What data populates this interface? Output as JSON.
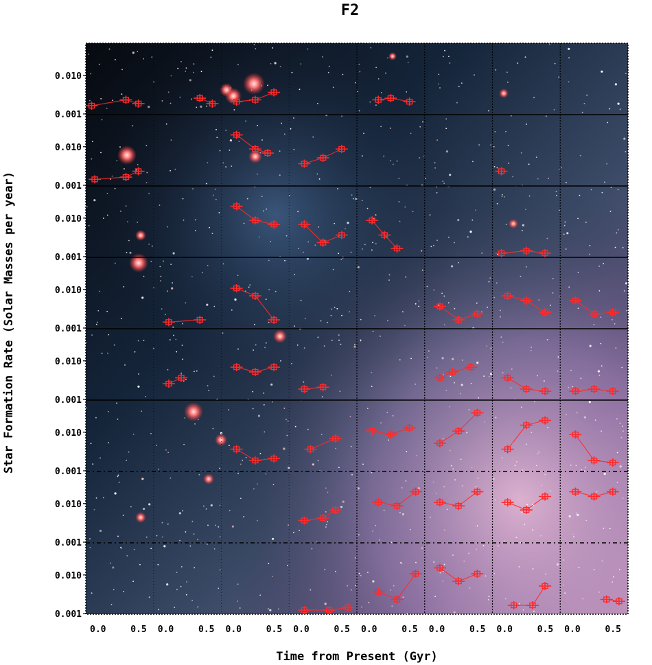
{
  "figure": {
    "title": "F2",
    "xlabel": "Time from Present (Gyr)",
    "ylabel": "Star Formation Rate (Solar Masses per year)"
  },
  "axes": {
    "y_tick_labels": [
      "0.010",
      "0.001"
    ],
    "x_tick_labels": [
      "0.0",
      "0.5",
      "0.0",
      "0.5",
      "0.0",
      "0.5",
      "0.0",
      "0.5",
      "0.0",
      "0.5",
      "0.0",
      "0.5",
      "0.0",
      "0.5",
      "0.0",
      "0.5"
    ]
  },
  "colors": {
    "frame": "#000000",
    "data_mark": "#ff2a2a",
    "text": "#000000"
  },
  "chart_data": {
    "type": "scatter",
    "title": "F2",
    "xlabel": "Time from Present (Gyr)",
    "ylabel": "Star Formation Rate (Solar Masses per year)",
    "grid": {
      "rows": 8,
      "cols": 8
    },
    "x_range_per_panel": [
      0,
      1
    ],
    "y_range_per_panel": [
      0.001,
      0.01
    ],
    "yscale": "log",
    "points_note": "per-panel star formation history estimates with error bars",
    "panels": [
      {
        "row": 0,
        "col": 0,
        "x": [
          0.05,
          0.6,
          0.8
        ],
        "y": [
          0.0012,
          0.0015,
          0.0013
        ]
      },
      {
        "row": 0,
        "col": 1,
        "x": [
          0.7,
          0.9
        ],
        "y": [
          0.0016,
          0.0013
        ]
      },
      {
        "row": 0,
        "col": 2,
        "x": [
          0.2,
          0.5,
          0.8
        ],
        "y": [
          0.0014,
          0.0015,
          0.002
        ]
      },
      {
        "row": 0,
        "col": 4,
        "x": [
          0.3,
          0.5,
          0.8
        ],
        "y": [
          0.0015,
          0.0016,
          0.0014
        ]
      },
      {
        "row": 1,
        "col": 0,
        "x": [
          0.1,
          0.6,
          0.8
        ],
        "y": [
          0.0011,
          0.0012,
          0.0015
        ]
      },
      {
        "row": 1,
        "col": 2,
        "x": [
          0.2,
          0.5,
          0.7
        ],
        "y": [
          0.006,
          0.0035,
          0.003
        ]
      },
      {
        "row": 1,
        "col": 3,
        "x": [
          0.2,
          0.5,
          0.8
        ],
        "y": [
          0.002,
          0.0025,
          0.0035
        ]
      },
      {
        "row": 1,
        "col": 6,
        "x": [
          0.1
        ],
        "y": [
          0.0015
        ]
      },
      {
        "row": 2,
        "col": 2,
        "x": [
          0.2,
          0.5,
          0.8
        ],
        "y": [
          0.006,
          0.0035,
          0.003
        ]
      },
      {
        "row": 2,
        "col": 3,
        "x": [
          0.2,
          0.5,
          0.8
        ],
        "y": [
          0.003,
          0.0015,
          0.002
        ]
      },
      {
        "row": 2,
        "col": 4,
        "x": [
          0.2,
          0.4,
          0.6
        ],
        "y": [
          0.0035,
          0.002,
          0.0012
        ]
      },
      {
        "row": 2,
        "col": 6,
        "x": [
          0.1,
          0.5,
          0.8
        ],
        "y": [
          0.001,
          0.0011,
          0.001
        ]
      },
      {
        "row": 3,
        "col": 1,
        "x": [
          0.2,
          0.7
        ],
        "y": [
          0.0011,
          0.0012
        ]
      },
      {
        "row": 3,
        "col": 2,
        "x": [
          0.2,
          0.5,
          0.8
        ],
        "y": [
          0.004,
          0.003,
          0.0012
        ]
      },
      {
        "row": 3,
        "col": 5,
        "x": [
          0.2,
          0.5,
          0.8
        ],
        "y": [
          0.002,
          0.0012,
          0.0015
        ]
      },
      {
        "row": 3,
        "col": 6,
        "x": [
          0.2,
          0.5,
          0.8
        ],
        "y": [
          0.003,
          0.0025,
          0.0016
        ]
      },
      {
        "row": 3,
        "col": 7,
        "x": [
          0.2,
          0.5,
          0.8
        ],
        "y": [
          0.0025,
          0.0015,
          0.0016
        ]
      },
      {
        "row": 4,
        "col": 1,
        "x": [
          0.2,
          0.4
        ],
        "y": [
          0.0016,
          0.002
        ]
      },
      {
        "row": 4,
        "col": 2,
        "x": [
          0.2,
          0.5,
          0.8
        ],
        "y": [
          0.003,
          0.0025,
          0.003
        ]
      },
      {
        "row": 4,
        "col": 3,
        "x": [
          0.2,
          0.5
        ],
        "y": [
          0.0013,
          0.0014
        ]
      },
      {
        "row": 4,
        "col": 5,
        "x": [
          0.2,
          0.4,
          0.7
        ],
        "y": [
          0.002,
          0.0025,
          0.003
        ]
      },
      {
        "row": 4,
        "col": 6,
        "x": [
          0.2,
          0.5,
          0.8
        ],
        "y": [
          0.002,
          0.0013,
          0.0012
        ]
      },
      {
        "row": 4,
        "col": 7,
        "x": [
          0.2,
          0.5,
          0.8
        ],
        "y": [
          0.0012,
          0.0013,
          0.0012
        ]
      },
      {
        "row": 5,
        "col": 2,
        "x": [
          0.2,
          0.5,
          0.8
        ],
        "y": [
          0.002,
          0.0013,
          0.0014
        ]
      },
      {
        "row": 5,
        "col": 3,
        "x": [
          0.3,
          0.7
        ],
        "y": [
          0.002,
          0.003
        ]
      },
      {
        "row": 5,
        "col": 4,
        "x": [
          0.2,
          0.5,
          0.8
        ],
        "y": [
          0.004,
          0.0035,
          0.0045
        ]
      },
      {
        "row": 5,
        "col": 5,
        "x": [
          0.2,
          0.5,
          0.8
        ],
        "y": [
          0.0025,
          0.004,
          0.008
        ]
      },
      {
        "row": 5,
        "col": 6,
        "x": [
          0.2,
          0.5,
          0.8
        ],
        "y": [
          0.002,
          0.005,
          0.006
        ]
      },
      {
        "row": 5,
        "col": 7,
        "x": [
          0.2,
          0.5,
          0.8
        ],
        "y": [
          0.0035,
          0.0013,
          0.0012
        ]
      },
      {
        "row": 6,
        "col": 3,
        "x": [
          0.2,
          0.5,
          0.7
        ],
        "y": [
          0.002,
          0.0022,
          0.003
        ]
      },
      {
        "row": 6,
        "col": 4,
        "x": [
          0.3,
          0.6,
          0.9
        ],
        "y": [
          0.004,
          0.0035,
          0.006
        ]
      },
      {
        "row": 6,
        "col": 5,
        "x": [
          0.2,
          0.5,
          0.8
        ],
        "y": [
          0.004,
          0.0035,
          0.006
        ]
      },
      {
        "row": 6,
        "col": 6,
        "x": [
          0.2,
          0.5,
          0.8
        ],
        "y": [
          0.004,
          0.003,
          0.005
        ]
      },
      {
        "row": 6,
        "col": 7,
        "x": [
          0.2,
          0.5,
          0.8
        ],
        "y": [
          0.006,
          0.005,
          0.006
        ]
      },
      {
        "row": 7,
        "col": 3,
        "x": [
          0.2,
          0.6,
          0.9
        ],
        "y": [
          0.001,
          0.001,
          0.0011
        ]
      },
      {
        "row": 7,
        "col": 4,
        "x": [
          0.3,
          0.6,
          0.9
        ],
        "y": [
          0.002,
          0.0015,
          0.004
        ]
      },
      {
        "row": 7,
        "col": 5,
        "x": [
          0.2,
          0.5,
          0.8
        ],
        "y": [
          0.005,
          0.003,
          0.004
        ]
      },
      {
        "row": 7,
        "col": 6,
        "x": [
          0.3,
          0.6,
          0.8
        ],
        "y": [
          0.0012,
          0.0012,
          0.0025
        ]
      },
      {
        "row": 7,
        "col": 7,
        "x": [
          0.7,
          0.9
        ],
        "y": [
          0.0015,
          0.0014
        ]
      }
    ]
  }
}
